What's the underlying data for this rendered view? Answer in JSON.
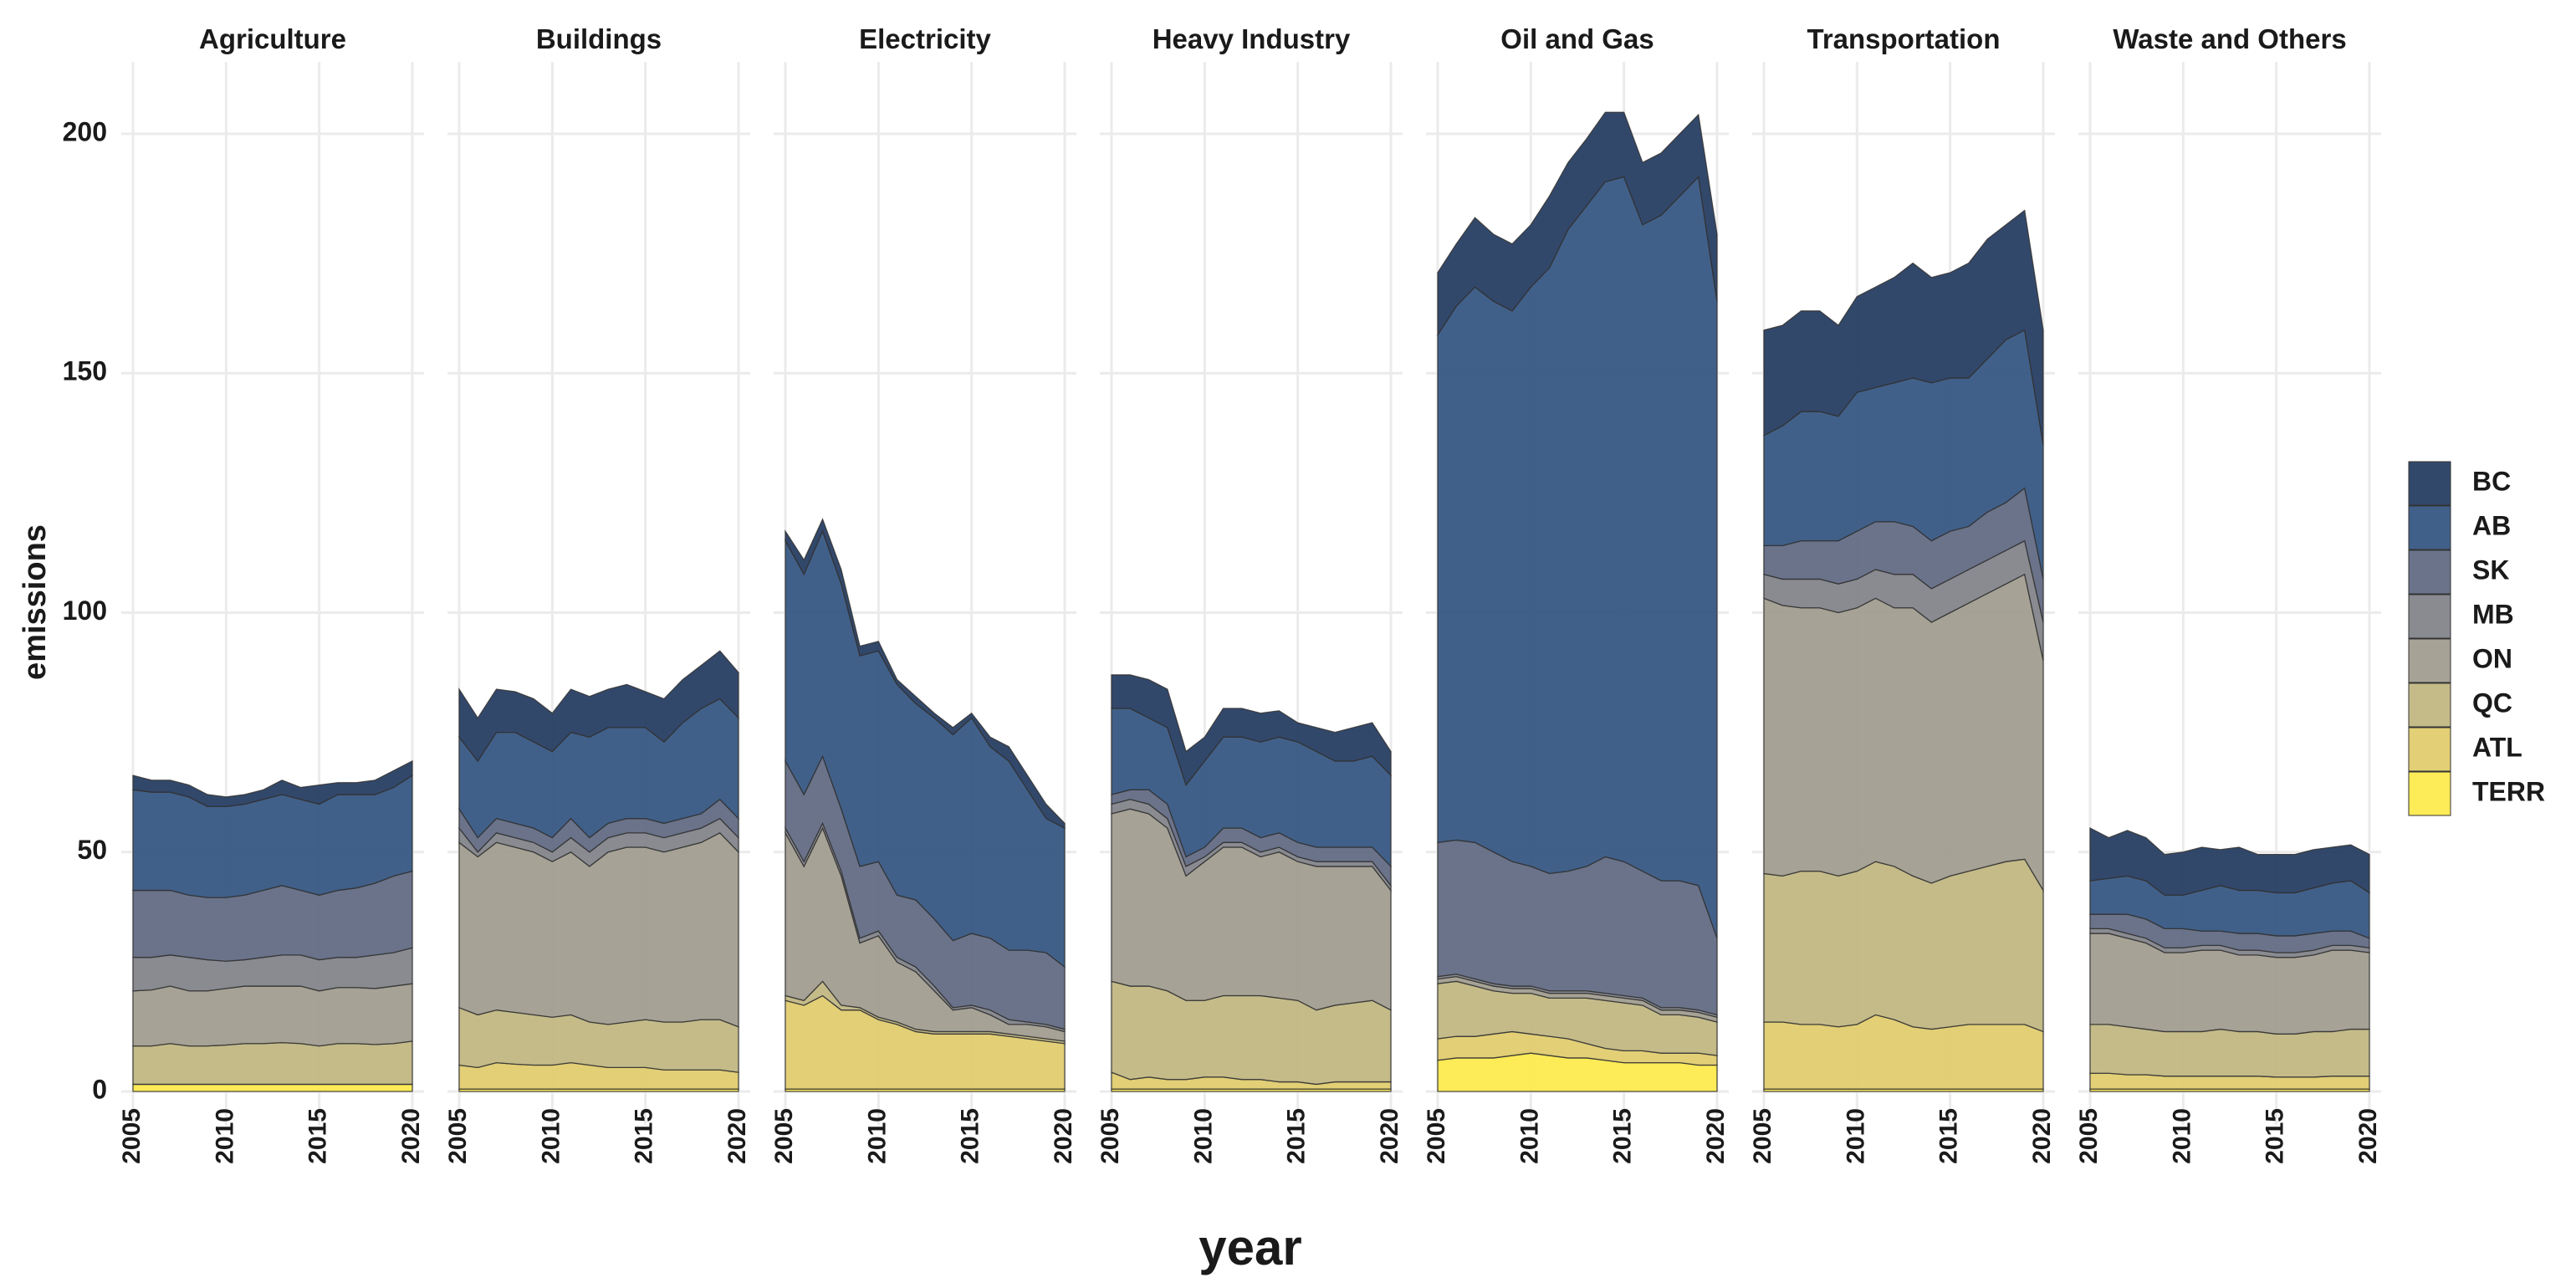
{
  "chart_data": {
    "type": "area",
    "stacked": true,
    "xlabel": "year",
    "ylabel": "emissions",
    "ylim": [
      0,
      215
    ],
    "xlim": [
      2005,
      2020
    ],
    "y_ticks": [
      0,
      50,
      100,
      150,
      200
    ],
    "x_ticks": [
      2005,
      2010,
      2015,
      2020
    ],
    "grid": true,
    "legend_position": "right",
    "years": [
      2005,
      2006,
      2007,
      2008,
      2009,
      2010,
      2011,
      2012,
      2013,
      2014,
      2015,
      2016,
      2017,
      2018,
      2019,
      2020
    ],
    "stack_order": [
      "TERR",
      "ATL",
      "QC",
      "ON",
      "MB",
      "SK",
      "AB",
      "BC"
    ],
    "legend_order": [
      "BC",
      "AB",
      "SK",
      "MB",
      "ON",
      "QC",
      "ATL",
      "TERR"
    ],
    "colors": {
      "BC": "#21385e",
      "AB": "#31527f",
      "SK": "#5d6780",
      "MB": "#7f8188",
      "ON": "#9e9a8c",
      "QC": "#bfb57f",
      "ATL": "#dfcb6a",
      "TERR": "#fde949"
    },
    "panels": [
      {
        "name": "Agriculture",
        "cumulative": {
          "TERR": [
            1.5,
            1.5,
            1.5,
            1.5,
            1.5,
            1.5,
            1.5,
            1.5,
            1.5,
            1.5,
            1.5,
            1.5,
            1.5,
            1.5,
            1.5,
            1.5
          ],
          "ATL": [
            1.5,
            1.5,
            1.5,
            1.5,
            1.5,
            1.5,
            1.5,
            1.5,
            1.5,
            1.5,
            1.5,
            1.5,
            1.5,
            1.5,
            1.5,
            1.5
          ],
          "QC": [
            9.5,
            9.5,
            10,
            9.5,
            9.5,
            9.7,
            10,
            10,
            10.2,
            10,
            9.5,
            10,
            10,
            9.8,
            10,
            10.5
          ],
          "ON": [
            21,
            21.2,
            22,
            21,
            21,
            21.5,
            22,
            22,
            22,
            22,
            21,
            21.7,
            21.7,
            21.5,
            22,
            22.5
          ],
          "MB": [
            28,
            28,
            28.5,
            28,
            27.5,
            27.2,
            27.5,
            28,
            28.5,
            28.5,
            27.5,
            28,
            28,
            28.5,
            29,
            30
          ],
          "SK": [
            42,
            42,
            42,
            41,
            40.5,
            40.5,
            41,
            42,
            43,
            42,
            41,
            42,
            42.5,
            43.5,
            45,
            46
          ],
          "AB": [
            63,
            62.5,
            62.5,
            61.5,
            59.5,
            59.5,
            60,
            61,
            62,
            61,
            60,
            62,
            62,
            62,
            63.5,
            66
          ],
          "BC": [
            66,
            65,
            65,
            64,
            62,
            61.5,
            62,
            63,
            65,
            63.5,
            64,
            64.5,
            64.5,
            65,
            67,
            69
          ]
        }
      },
      {
        "name": "Buildings",
        "cumulative": {
          "TERR": [
            0.5,
            0.5,
            0.5,
            0.5,
            0.5,
            0.5,
            0.5,
            0.5,
            0.5,
            0.5,
            0.5,
            0.5,
            0.5,
            0.5,
            0.5,
            0.5
          ],
          "ATL": [
            5.5,
            5,
            6,
            5.7,
            5.5,
            5.5,
            6,
            5.5,
            5,
            5,
            5,
            4.5,
            4.5,
            4.5,
            4.5,
            4
          ],
          "QC": [
            17.5,
            16,
            17,
            16.5,
            16,
            15.5,
            16,
            14.5,
            14,
            14.5,
            15,
            14.5,
            14.5,
            15,
            15,
            13.5
          ],
          "ON": [
            52,
            49,
            52,
            51,
            50,
            48,
            50,
            47,
            50,
            51,
            51,
            50,
            51,
            52,
            54,
            50
          ],
          "MB": [
            55,
            50,
            54,
            53,
            52,
            50,
            53,
            50,
            53,
            54,
            54,
            53,
            54,
            55,
            57,
            53
          ],
          "SK": [
            59,
            53,
            57,
            56,
            55,
            53,
            57,
            53,
            56,
            57,
            57,
            56,
            57,
            58,
            61,
            57
          ],
          "AB": [
            74,
            69,
            75,
            75,
            73,
            71,
            75,
            74,
            76,
            76,
            76,
            73,
            77,
            80,
            82,
            78
          ],
          "BC": [
            84,
            78,
            84,
            83.5,
            82,
            79,
            84,
            82.5,
            84,
            85,
            83.5,
            82,
            86,
            89,
            92,
            87.5
          ]
        }
      },
      {
        "name": "Electricity",
        "cumulative": {
          "TERR": [
            0.5,
            0.5,
            0.5,
            0.5,
            0.5,
            0.5,
            0.5,
            0.5,
            0.5,
            0.5,
            0.5,
            0.5,
            0.5,
            0.5,
            0.5,
            0.5
          ],
          "ATL": [
            19,
            18,
            20,
            17,
            17,
            15,
            14,
            12.5,
            12,
            12,
            12,
            12,
            11.5,
            11,
            10.5,
            10
          ],
          "QC": [
            20,
            19,
            23,
            18,
            17.5,
            15.5,
            14.5,
            13,
            12.5,
            12.5,
            12.5,
            12.5,
            12,
            11.5,
            11,
            10.5
          ],
          "ON": [
            54,
            47,
            55,
            45,
            31,
            32.5,
            27,
            25,
            21,
            17,
            17.5,
            16,
            14,
            14,
            13.5,
            12.5
          ],
          "MB": [
            55,
            48,
            56,
            46,
            32,
            33.5,
            28,
            26,
            22,
            17.5,
            18,
            17,
            15,
            14.5,
            14,
            13
          ],
          "SK": [
            69,
            62,
            70,
            59,
            47,
            48,
            41,
            40,
            36,
            31.5,
            33,
            32,
            29.5,
            29.5,
            29,
            26
          ],
          "AB": [
            115,
            108,
            117,
            106,
            91,
            92,
            85,
            81,
            78,
            74.5,
            78,
            72,
            69,
            63,
            57,
            55
          ],
          "BC": [
            117,
            111,
            119.5,
            109,
            93,
            94,
            86,
            82.5,
            79,
            76,
            79,
            74,
            72,
            66,
            60,
            56
          ]
        }
      },
      {
        "name": "Heavy Industry",
        "cumulative": {
          "TERR": [
            0.5,
            0.5,
            0.5,
            0.5,
            0.5,
            0.5,
            0.5,
            0.5,
            0.5,
            0.5,
            0.5,
            0.5,
            0.5,
            0.5,
            0.5,
            0.5
          ],
          "ATL": [
            4,
            2.5,
            3,
            2.5,
            2.5,
            3,
            3,
            2.5,
            2.5,
            2,
            2,
            1.5,
            2,
            2,
            2,
            2
          ],
          "QC": [
            23,
            22,
            22,
            21,
            19,
            19,
            20,
            20,
            20,
            19.5,
            19,
            17,
            18,
            18.5,
            19,
            17
          ],
          "ON": [
            58,
            59,
            58,
            55,
            45,
            48,
            51,
            51,
            49,
            50,
            48,
            47,
            47,
            47,
            47,
            42
          ],
          "MB": [
            60,
            61,
            60,
            57,
            47,
            49,
            52,
            52,
            50,
            51,
            49,
            48,
            48,
            48,
            48,
            43
          ],
          "SK": [
            62,
            63,
            63,
            60,
            49,
            51,
            55,
            55,
            53,
            54,
            52,
            51,
            51,
            51,
            51,
            47
          ],
          "AB": [
            80,
            80,
            78,
            76,
            64,
            69,
            74,
            74,
            73,
            74,
            73,
            71,
            69,
            69,
            70,
            66
          ],
          "BC": [
            87,
            87,
            86,
            84,
            71,
            74,
            80,
            80,
            79,
            79.5,
            77,
            76,
            75,
            76,
            77,
            71
          ]
        }
      },
      {
        "name": "Oil and Gas",
        "cumulative": {
          "TERR": [
            6.5,
            7,
            7,
            7,
            7.5,
            8,
            7.5,
            7,
            7,
            6.5,
            6,
            6,
            6,
            6,
            5.5,
            5.5
          ],
          "ATL": [
            11,
            11.5,
            11.5,
            12,
            12.5,
            12,
            11.5,
            11,
            10,
            9,
            8.5,
            8.5,
            8,
            8,
            8,
            7.5
          ],
          "QC": [
            22.5,
            23,
            22,
            21,
            20.5,
            20.5,
            19.5,
            19.5,
            19.5,
            19,
            18.5,
            18,
            16,
            16,
            15.5,
            14.5
          ],
          "ON": [
            23.5,
            24,
            23,
            22,
            21.5,
            21.5,
            20.5,
            20.5,
            20.5,
            20,
            19.5,
            19,
            17,
            17,
            16.5,
            15.5
          ],
          "MB": [
            24,
            24.5,
            23.5,
            22.5,
            22,
            22,
            21,
            21,
            21,
            20.5,
            20,
            19.5,
            17.5,
            17.5,
            17,
            16
          ],
          "SK": [
            52,
            52.5,
            52,
            50,
            48,
            47,
            45.5,
            46,
            47,
            49,
            48,
            46,
            44,
            44,
            43,
            32
          ],
          "AB": [
            158,
            164,
            168,
            165,
            163,
            168,
            172,
            180,
            185,
            190,
            191,
            181,
            183,
            187,
            191,
            165
          ],
          "BC": [
            171,
            177,
            182.5,
            179,
            177,
            181,
            187,
            194,
            199,
            204.5,
            204.5,
            194,
            196,
            200,
            204,
            179
          ]
        }
      },
      {
        "name": "Transportation",
        "cumulative": {
          "TERR": [
            0.5,
            0.5,
            0.5,
            0.5,
            0.5,
            0.5,
            0.5,
            0.5,
            0.5,
            0.5,
            0.5,
            0.5,
            0.5,
            0.5,
            0.5,
            0.5
          ],
          "ATL": [
            14.5,
            14.5,
            14,
            14,
            13.5,
            14,
            16,
            15,
            13.5,
            13,
            13.5,
            14,
            14,
            14,
            14,
            12.5
          ],
          "QC": [
            45.5,
            45,
            46,
            46,
            45,
            46,
            48,
            47,
            45,
            43.5,
            45,
            46,
            47,
            48,
            48.5,
            42
          ],
          "ON": [
            103,
            101.5,
            101,
            101,
            100,
            101,
            103,
            101,
            101,
            98,
            100,
            102,
            104,
            106,
            108,
            90
          ],
          "MB": [
            108,
            107,
            107,
            107,
            106,
            107,
            109,
            108,
            108,
            105,
            107,
            109,
            111,
            113,
            115,
            98
          ],
          "SK": [
            114,
            114,
            115,
            115,
            115,
            117,
            119,
            119,
            118,
            115,
            117,
            118,
            121,
            123,
            126,
            107
          ],
          "AB": [
            137,
            139,
            142,
            142,
            141,
            146,
            147,
            148,
            149,
            148,
            149,
            149,
            153,
            157,
            159,
            135
          ],
          "BC": [
            159,
            160,
            163,
            163,
            160,
            166,
            168,
            170,
            173,
            170,
            171,
            173,
            178,
            181,
            184,
            159
          ]
        }
      },
      {
        "name": "Waste and Others",
        "cumulative": {
          "TERR": [
            0.5,
            0.5,
            0.5,
            0.5,
            0.5,
            0.5,
            0.5,
            0.5,
            0.5,
            0.5,
            0.5,
            0.5,
            0.5,
            0.5,
            0.5,
            0.5
          ],
          "ATL": [
            3.8,
            3.8,
            3.5,
            3.5,
            3.2,
            3.2,
            3.2,
            3.2,
            3.2,
            3.2,
            3,
            3,
            3,
            3.2,
            3.2,
            3.2
          ],
          "QC": [
            14,
            14,
            13.5,
            13,
            12.5,
            12.5,
            12.5,
            13,
            12.5,
            12.5,
            12,
            12,
            12.5,
            12.5,
            13,
            13
          ],
          "ON": [
            33,
            33,
            32,
            31,
            29,
            29,
            29.5,
            29.5,
            28.5,
            28.5,
            28,
            28,
            28.5,
            29.5,
            29.5,
            29
          ],
          "MB": [
            34,
            34,
            33,
            32,
            30,
            30,
            30.5,
            30.5,
            29.5,
            29.5,
            29,
            29,
            29.5,
            30.5,
            30.5,
            30
          ],
          "SK": [
            37,
            37,
            37,
            36,
            34,
            34,
            33.5,
            33.5,
            33,
            33,
            32.5,
            32.5,
            33,
            33.5,
            33.5,
            32
          ],
          "AB": [
            44,
            44.5,
            45,
            44,
            41,
            41,
            42,
            43,
            42,
            42,
            41.5,
            41.5,
            42.5,
            43.5,
            44,
            41.5
          ],
          "BC": [
            55,
            53,
            54.5,
            53,
            49.5,
            50,
            51,
            50.5,
            51,
            49.5,
            49.5,
            49.5,
            50.5,
            51,
            51.5,
            49.5
          ]
        }
      }
    ]
  }
}
